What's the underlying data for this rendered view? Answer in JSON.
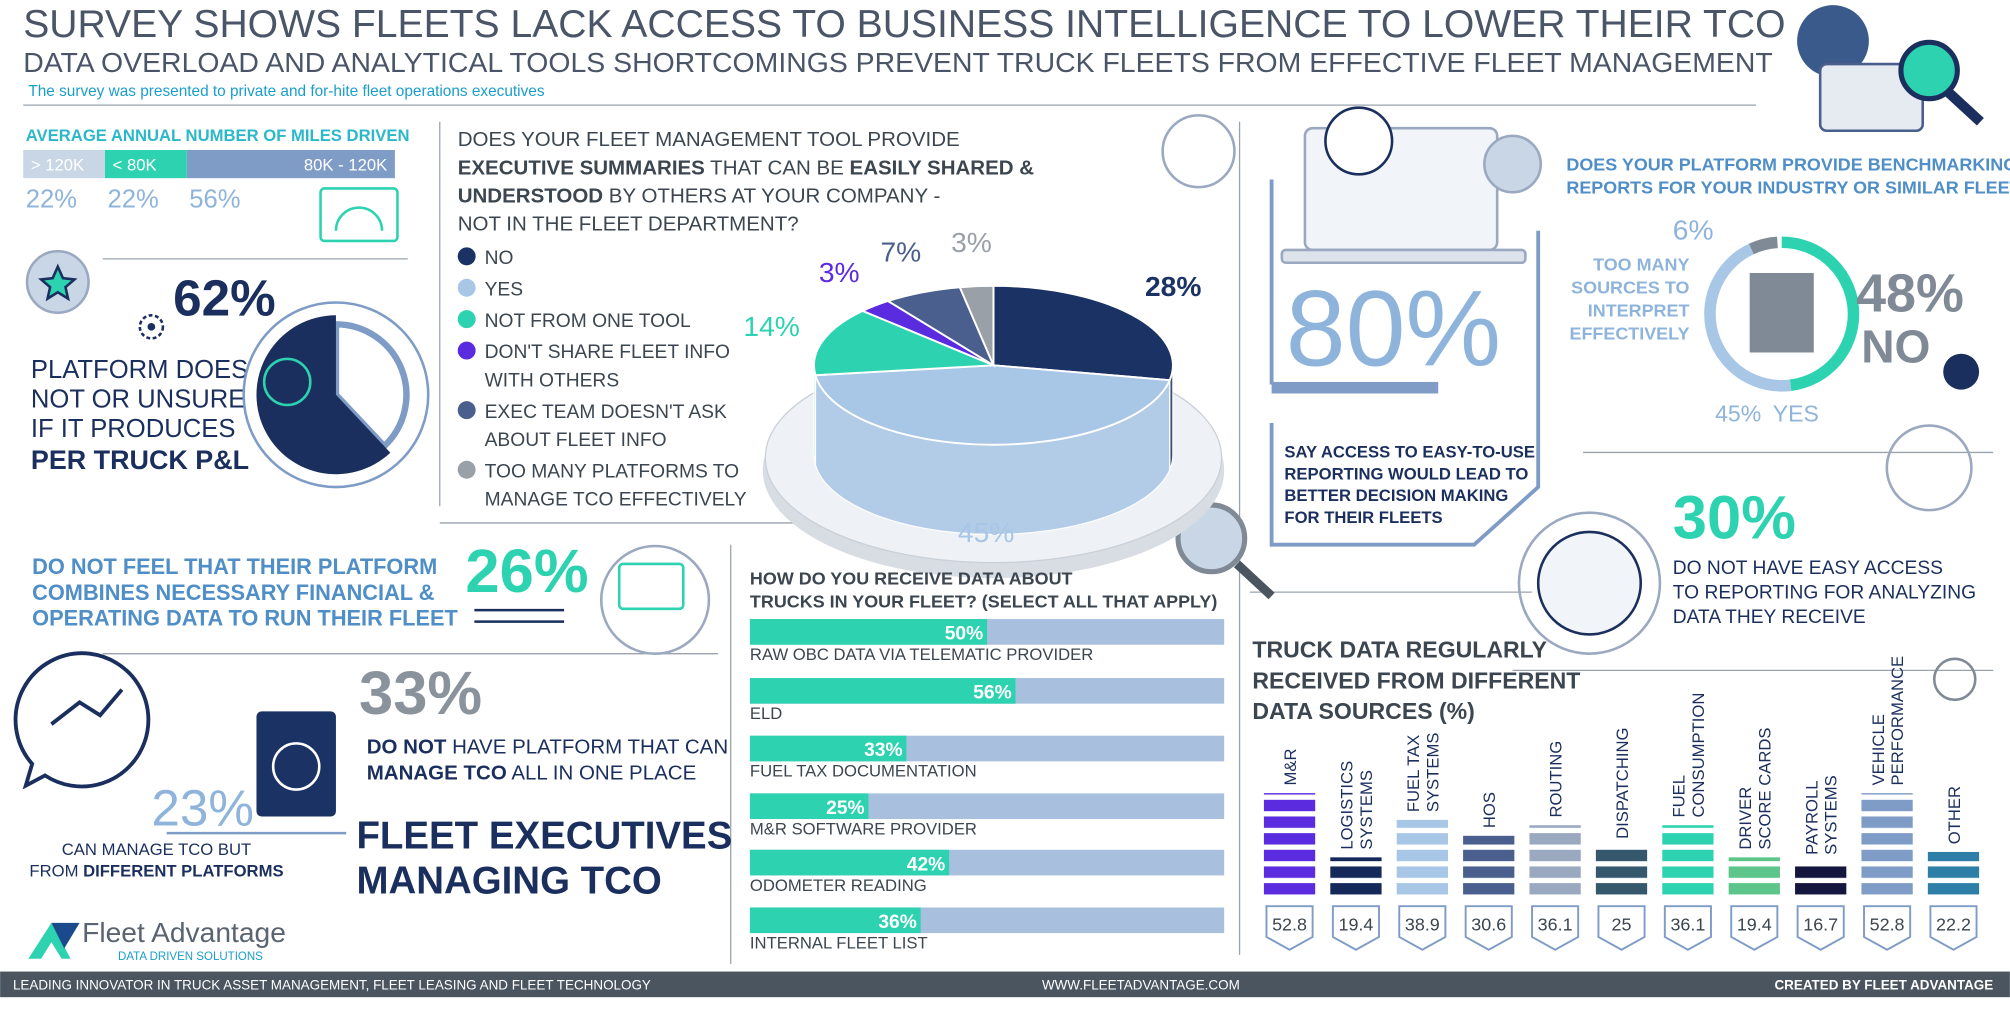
{
  "header": {
    "title": "SURVEY SHOWS FLEETS LACK ACCESS TO BUSINESS INTELLIGENCE TO LOWER THEIR TCO",
    "subtitle": "DATA OVERLOAD AND ANALYTICAL TOOLS SHORTCOMINGS PREVENT TRUCK FLEETS FROM EFFECTIVE FLEET MANAGEMENT",
    "note": "The survey was presented to private and for-hite fleet operations executives"
  },
  "miles": {
    "heading": "AVERAGE ANNUAL NUMBER OF MILES DRIVEN",
    "categories": [
      "> 120K",
      "< 80K",
      "80K - 120K"
    ],
    "values": [
      22,
      22,
      56
    ],
    "value_labels": [
      "22%",
      "22%",
      "56%"
    ],
    "colors": [
      "#c9d6e6",
      "#2dd3b0",
      "#7e9cc6"
    ]
  },
  "pl": {
    "value": 62,
    "value_label": "62%",
    "lines": [
      "PLATFORM DOES",
      "NOT OR UNSURE",
      "IF IT PRODUCES"
    ],
    "emphasis": "PER TRUCK P&L",
    "color": "#1b2f5e"
  },
  "summaries": {
    "type": "pie",
    "question": [
      [
        {
          "text": "DOES YOUR FLEET MANAGEMENT TOOL PROVIDE"
        }
      ],
      [
        {
          "text": "EXECUTIVE SUMMARIES",
          "bold": true
        },
        {
          "text": " THAT CAN BE "
        },
        {
          "text": "EASILY SHARED &",
          "bold": true
        }
      ],
      [
        {
          "text": "UNDERSTOOD",
          "bold": true
        },
        {
          "text": " BY OTHERS AT YOUR COMPANY -"
        }
      ],
      [
        {
          "text": "NOT IN THE FLEET DEPARTMENT?"
        }
      ]
    ],
    "series": [
      {
        "name_lines": [
          "NO"
        ],
        "color": "#1b3264",
        "value": 28,
        "value_label": "28%"
      },
      {
        "name_lines": [
          "YES"
        ],
        "color": "#a8c6e6",
        "value": 45,
        "value_label": "45%"
      },
      {
        "name_lines": [
          "NOT FROM ONE TOOL"
        ],
        "color": "#2dd3b0",
        "value": 14,
        "value_label": "14%"
      },
      {
        "name_lines": [
          "DON'T SHARE FLEET INFO",
          "WITH OTHERS"
        ],
        "color": "#5b2be0",
        "value": 3,
        "value_label": "3%"
      },
      {
        "name_lines": [
          "EXEC TEAM DOESN'T ASK",
          "ABOUT FLEET INFO"
        ],
        "color": "#4a5f8e",
        "value": 7,
        "value_label": "7%"
      },
      {
        "name_lines": [
          "TOO MANY PLATFORMS TO",
          "MANAGE TCO EFFECTIVELY"
        ],
        "color": "#9aa0a8",
        "value": 3,
        "value_label": "3%"
      }
    ]
  },
  "access": {
    "value_label": "80%",
    "lines": [
      "SAY ACCESS TO EASY-TO-USE",
      "REPORTING WOULD LEAD TO",
      "BETTER DECISION MAKING",
      "FOR THEIR FLEETS"
    ]
  },
  "benchmark": {
    "title_lines": [
      "DOES YOUR PLATFORM PROVIDE BENCHMARKING",
      "REPORTS FOR YOUR INDUSTRY OR SIMILAR FLEETS?"
    ],
    "no": {
      "value": 48,
      "label": "48%",
      "word": "NO",
      "color": "#2dd3b0"
    },
    "yes": {
      "value": 45,
      "label": "45%",
      "word": "YES",
      "color": "#a8c6e6"
    },
    "other": {
      "value": 6,
      "label": "6%",
      "lines": [
        "TOO MANY",
        "SOURCES TO",
        "INTERPRET",
        "EFFECTIVELY"
      ],
      "color": "#7f8a96"
    }
  },
  "reporting": {
    "value_label": "30%",
    "lines": [
      "DO NOT HAVE EASY ACCESS",
      "TO REPORTING FOR ANALYZING",
      "DATA THEY RECEIVE"
    ]
  },
  "financial": {
    "lines": [
      "DO NOT FEEL THAT THEIR PLATFORM",
      "COMBINES NECESSARY FINANCIAL &",
      "OPERATING DATA TO RUN THEIR FLEET"
    ],
    "value_label": "26%"
  },
  "tco_one": {
    "value_label": "33%",
    "lines": [
      [
        {
          "text": "DO NOT",
          "bold": true
        },
        {
          "text": " HAVE PLATFORM THAT CAN"
        }
      ],
      [
        {
          "text": "MANAGE TCO",
          "bold": true
        },
        {
          "text": " ALL IN ONE PLACE"
        }
      ]
    ]
  },
  "tco_many": {
    "value_label": "23%",
    "lines": [
      [
        {
          "text": "CAN MANAGE TCO BUT"
        }
      ],
      [
        {
          "text": "FROM "
        },
        {
          "text": "DIFFERENT PLATFORMS",
          "bold": true
        }
      ]
    ]
  },
  "headline": {
    "lines": [
      "FLEET EXECUTIVES",
      "MANAGING TCO"
    ]
  },
  "receive": {
    "title_lines": [
      "HOW DO YOU RECEIVE DATA ABOUT",
      "TRUCKS IN YOUR FLEET? (SELECT ALL THAT APPLY)"
    ],
    "categories": [
      "RAW OBC DATA VIA TELEMATIC PROVIDER",
      "ELD",
      "FUEL TAX DOCUMENTATION",
      "M&R SOFTWARE PROVIDER",
      "ODOMETER READING",
      "INTERNAL FLEET LIST"
    ],
    "values": [
      50,
      56,
      33,
      25,
      42,
      36
    ],
    "value_labels": [
      "50%",
      "56%",
      "33%",
      "25%",
      "42%",
      "36%"
    ],
    "color": "#2dd3b0",
    "track_color": "#a8c0de"
  },
  "sources": {
    "title_lines": [
      "TRUCK DATA REGULARLY",
      "RECEIVED FROM DIFFERENT",
      "DATA SOURCES (%)"
    ],
    "categories": [
      [
        "M&R"
      ],
      [
        "LOGISTICS",
        "SYSTEMS"
      ],
      [
        "FUEL TAX",
        "SYSTEMS"
      ],
      [
        "HOS"
      ],
      [
        "ROUTING"
      ],
      [
        "DISPATCHING"
      ],
      [
        "FUEL",
        "CONSUMPTION"
      ],
      [
        "DRIVER",
        "SCORE CARDS"
      ],
      [
        "PAYROLL",
        "SYSTEMS"
      ],
      [
        "VEHICLE",
        "PERFORMANCE"
      ],
      [
        "OTHER"
      ]
    ],
    "values": [
      52.8,
      19.4,
      38.9,
      30.6,
      36.1,
      25,
      36.1,
      19.4,
      16.7,
      52.8,
      22.2
    ],
    "colors": [
      "#5b2be0",
      "#14285a",
      "#a8c6e6",
      "#4a5f8e",
      "#9aa8c0",
      "#35586c",
      "#2dd3b0",
      "#5dc58a",
      "#14163e",
      "#7e9cc6",
      "#2e7fa8"
    ]
  },
  "logo": {
    "name": "Fleet Advantage",
    "tagline": "DATA DRIVEN SOLUTIONS"
  },
  "footer": {
    "left": "LEADING INNOVATOR IN TRUCK ASSET MANAGEMENT, FLEET LEASING AND FLEET TECHNOLOGY",
    "center": "WWW.FLEETADVANTAGE.COM",
    "right": "CREATED BY FLEET ADVANTAGE"
  }
}
